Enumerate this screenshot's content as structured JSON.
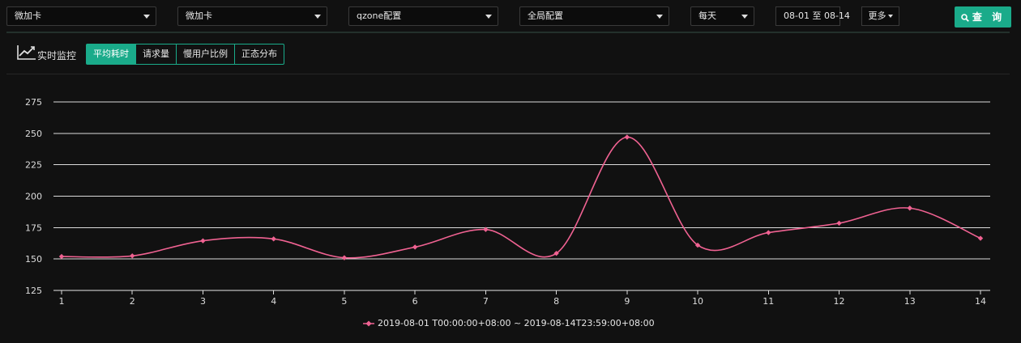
{
  "toolbar": {
    "selects": [
      {
        "name": "product-select",
        "value": "微加卡"
      },
      {
        "name": "module-select",
        "value": "微加卡"
      },
      {
        "name": "config-select",
        "value": "qzone配置"
      },
      {
        "name": "scope-select",
        "value": "全局配置"
      },
      {
        "name": "granularity-select",
        "value": "每天"
      }
    ],
    "date_range": "08-01 至 08-14",
    "more_label": "更多",
    "query_label": "查 询"
  },
  "monitor": {
    "label": "实时监控",
    "tabs": [
      "平均耗时",
      "请求量",
      "慢用户比例",
      "正态分布"
    ],
    "active_tab": 0
  },
  "colors": {
    "accent": "#1aab8a",
    "series": "#f06292",
    "grid": "#ffffff",
    "background": "#111111"
  },
  "chart_data": {
    "type": "line",
    "title": "",
    "xlabel": "",
    "ylabel": "",
    "x": [
      1,
      2,
      3,
      4,
      5,
      6,
      7,
      8,
      9,
      10,
      11,
      12,
      13,
      14
    ],
    "ylim": [
      125,
      275
    ],
    "yticks": [
      125,
      150,
      175,
      200,
      225,
      250,
      275
    ],
    "grid": true,
    "smooth": true,
    "legend_position": "bottom-center",
    "series": [
      {
        "name": "2019-08-01 T00:00:00+08:00 ~ 2019-08-14T23:59:00+08:00",
        "values": [
          152,
          152.5,
          164.5,
          166,
          151,
          159.5,
          173.5,
          154.5,
          247,
          161,
          171,
          178.5,
          190.5,
          166.5
        ]
      }
    ]
  }
}
